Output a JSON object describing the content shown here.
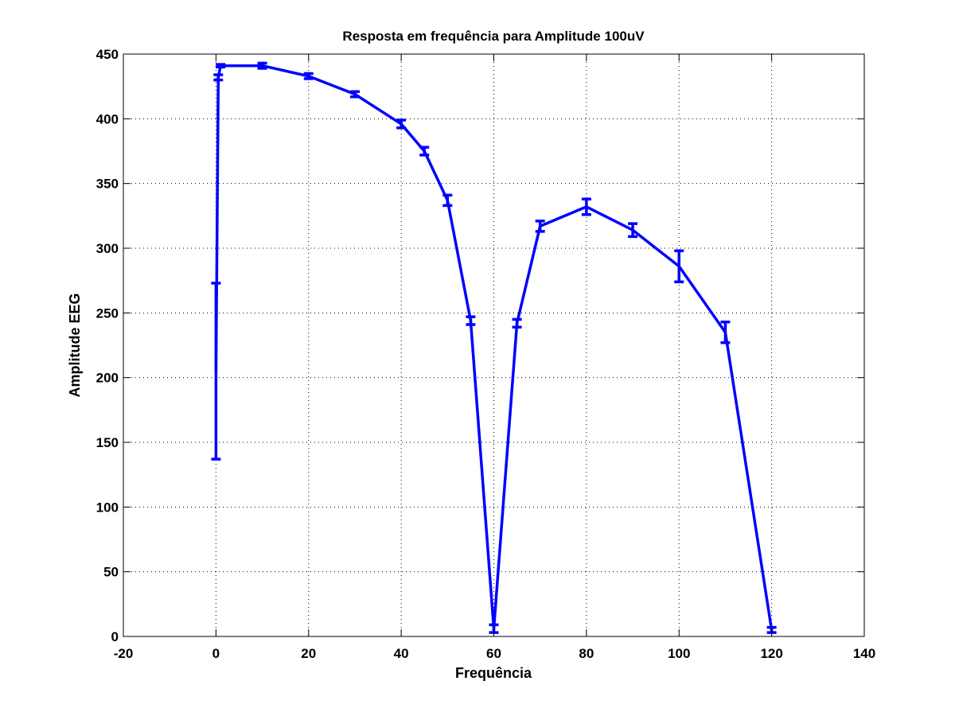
{
  "chart_data": {
    "type": "line",
    "title": "Resposta em frequência para Amplitude 100uV",
    "xlabel": "Frequência",
    "ylabel": "Amplitude EEG",
    "xlim": [
      -20,
      140
    ],
    "ylim": [
      0,
      450
    ],
    "xticks": [
      -20,
      0,
      20,
      40,
      60,
      80,
      100,
      120,
      140
    ],
    "yticks": [
      0,
      50,
      100,
      150,
      200,
      250,
      300,
      350,
      400,
      450
    ],
    "grid": true,
    "series": [
      {
        "name": "Amplitude EEG",
        "color": "#0000ff",
        "x": [
          0,
          0.5,
          1,
          10,
          20,
          30,
          40,
          45,
          50,
          55,
          60,
          65,
          70,
          80,
          90,
          100,
          110,
          120
        ],
        "y": [
          205,
          432,
          441,
          441,
          433,
          419,
          396,
          375,
          337,
          244,
          6,
          242,
          317,
          332,
          314,
          286,
          235,
          5
        ],
        "err": [
          68,
          2,
          1,
          2,
          2,
          2,
          3,
          3,
          4,
          3,
          3,
          3,
          4,
          6,
          5,
          12,
          8,
          2
        ]
      }
    ]
  }
}
